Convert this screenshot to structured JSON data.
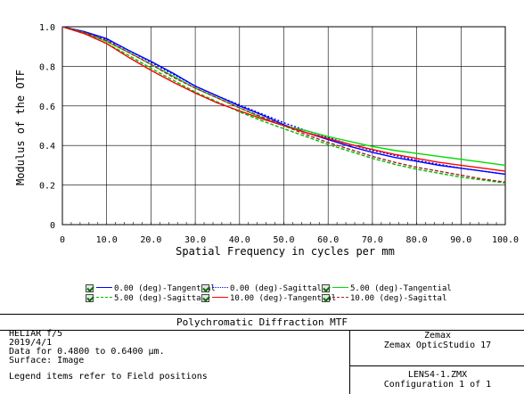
{
  "chart_data": {
    "type": "line",
    "xlabel": "Spatial Frequency in cycles per mm",
    "ylabel": "Modulus of the OTF",
    "xlim": [
      0,
      100
    ],
    "ylim": [
      0,
      1
    ],
    "xticks": [
      "0",
      "10.0",
      "20.0",
      "30.0",
      "40.0",
      "50.0",
      "60.0",
      "70.0",
      "80.0",
      "90.0",
      "100.0"
    ],
    "yticks": [
      "0",
      "0.2",
      "0.4",
      "0.6",
      "0.8",
      "1.0"
    ],
    "grid": true,
    "x": [
      0,
      5,
      10,
      15,
      20,
      25,
      30,
      35,
      40,
      45,
      50,
      55,
      60,
      65,
      70,
      75,
      80,
      85,
      90,
      95,
      100
    ],
    "series": [
      {
        "name": "0.00 (deg)-Tangential",
        "color": "#0000ff",
        "dash": "solid",
        "values": [
          1.0,
          0.975,
          0.94,
          0.88,
          0.825,
          0.765,
          0.7,
          0.65,
          0.6,
          0.555,
          0.505,
          0.465,
          0.43,
          0.395,
          0.365,
          0.34,
          0.32,
          0.3,
          0.285,
          0.27,
          0.255
        ]
      },
      {
        "name": "0.00 (deg)-Sagittal",
        "color": "#0000ff",
        "dash": "dotted",
        "values": [
          1.0,
          0.975,
          0.935,
          0.88,
          0.82,
          0.76,
          0.7,
          0.65,
          0.605,
          0.56,
          0.515,
          0.475,
          0.44,
          0.405,
          0.375,
          0.35,
          0.325,
          0.305,
          0.285,
          0.27,
          0.255
        ]
      },
      {
        "name": "5.00 (deg)-Tangential",
        "color": "#00dd00",
        "dash": "solid",
        "values": [
          1.0,
          0.97,
          0.925,
          0.87,
          0.81,
          0.75,
          0.69,
          0.64,
          0.59,
          0.54,
          0.5,
          0.475,
          0.445,
          0.42,
          0.395,
          0.375,
          0.36,
          0.345,
          0.33,
          0.315,
          0.3
        ]
      },
      {
        "name": "5.00 (deg)-Sagittal",
        "color": "#00bb00",
        "dash": "dashed",
        "values": [
          1.0,
          0.965,
          0.915,
          0.855,
          0.79,
          0.73,
          0.67,
          0.62,
          0.57,
          0.525,
          0.485,
          0.445,
          0.405,
          0.37,
          0.335,
          0.305,
          0.28,
          0.26,
          0.24,
          0.225,
          0.21
        ]
      },
      {
        "name": "10.00 (deg)-Tangential",
        "color": "#ff0000",
        "dash": "solid",
        "values": [
          1.0,
          0.965,
          0.915,
          0.845,
          0.78,
          0.72,
          0.665,
          0.615,
          0.575,
          0.535,
          0.5,
          0.465,
          0.435,
          0.405,
          0.38,
          0.355,
          0.335,
          0.315,
          0.3,
          0.285,
          0.27
        ]
      },
      {
        "name": "10.00 (deg)-Sagittal",
        "color": "#aa2222",
        "dash": "dashed",
        "values": [
          1.0,
          0.97,
          0.93,
          0.87,
          0.81,
          0.745,
          0.69,
          0.64,
          0.59,
          0.545,
          0.5,
          0.455,
          0.415,
          0.38,
          0.345,
          0.315,
          0.29,
          0.27,
          0.25,
          0.23,
          0.215
        ]
      }
    ]
  },
  "legend": [
    {
      "label": "0.00 (deg)-Tangential",
      "color": "#0000ff",
      "style": "solid"
    },
    {
      "label": "0.00 (deg)-Sagittal",
      "color": "#0000ff",
      "style": "dotted"
    },
    {
      "label": "5.00 (deg)-Tangential",
      "color": "#00dd00",
      "style": "solid"
    },
    {
      "label": "5.00 (deg)-Sagittal",
      "color": "#00bb00",
      "style": "dashed"
    },
    {
      "label": "10.00 (deg)-Tangential",
      "color": "#ff0000",
      "style": "solid"
    },
    {
      "label": "10.00 (deg)-Sagittal",
      "color": "#aa2222",
      "style": "dashed"
    }
  ],
  "info": {
    "title": "Polychromatic Diffraction MTF",
    "lens_name": "HELIAR   f/5",
    "date": "2019/4/1",
    "wavelength": "Data for 0.4800 to 0.6400 µm.",
    "surface": "Surface: Image",
    "legend_note": "Legend items refer to Field positions",
    "company": "Zemax",
    "product": "Zemax OpticStudio 17",
    "file": "LENS4-1.ZMX",
    "configuration": "Configuration 1 of 1"
  }
}
